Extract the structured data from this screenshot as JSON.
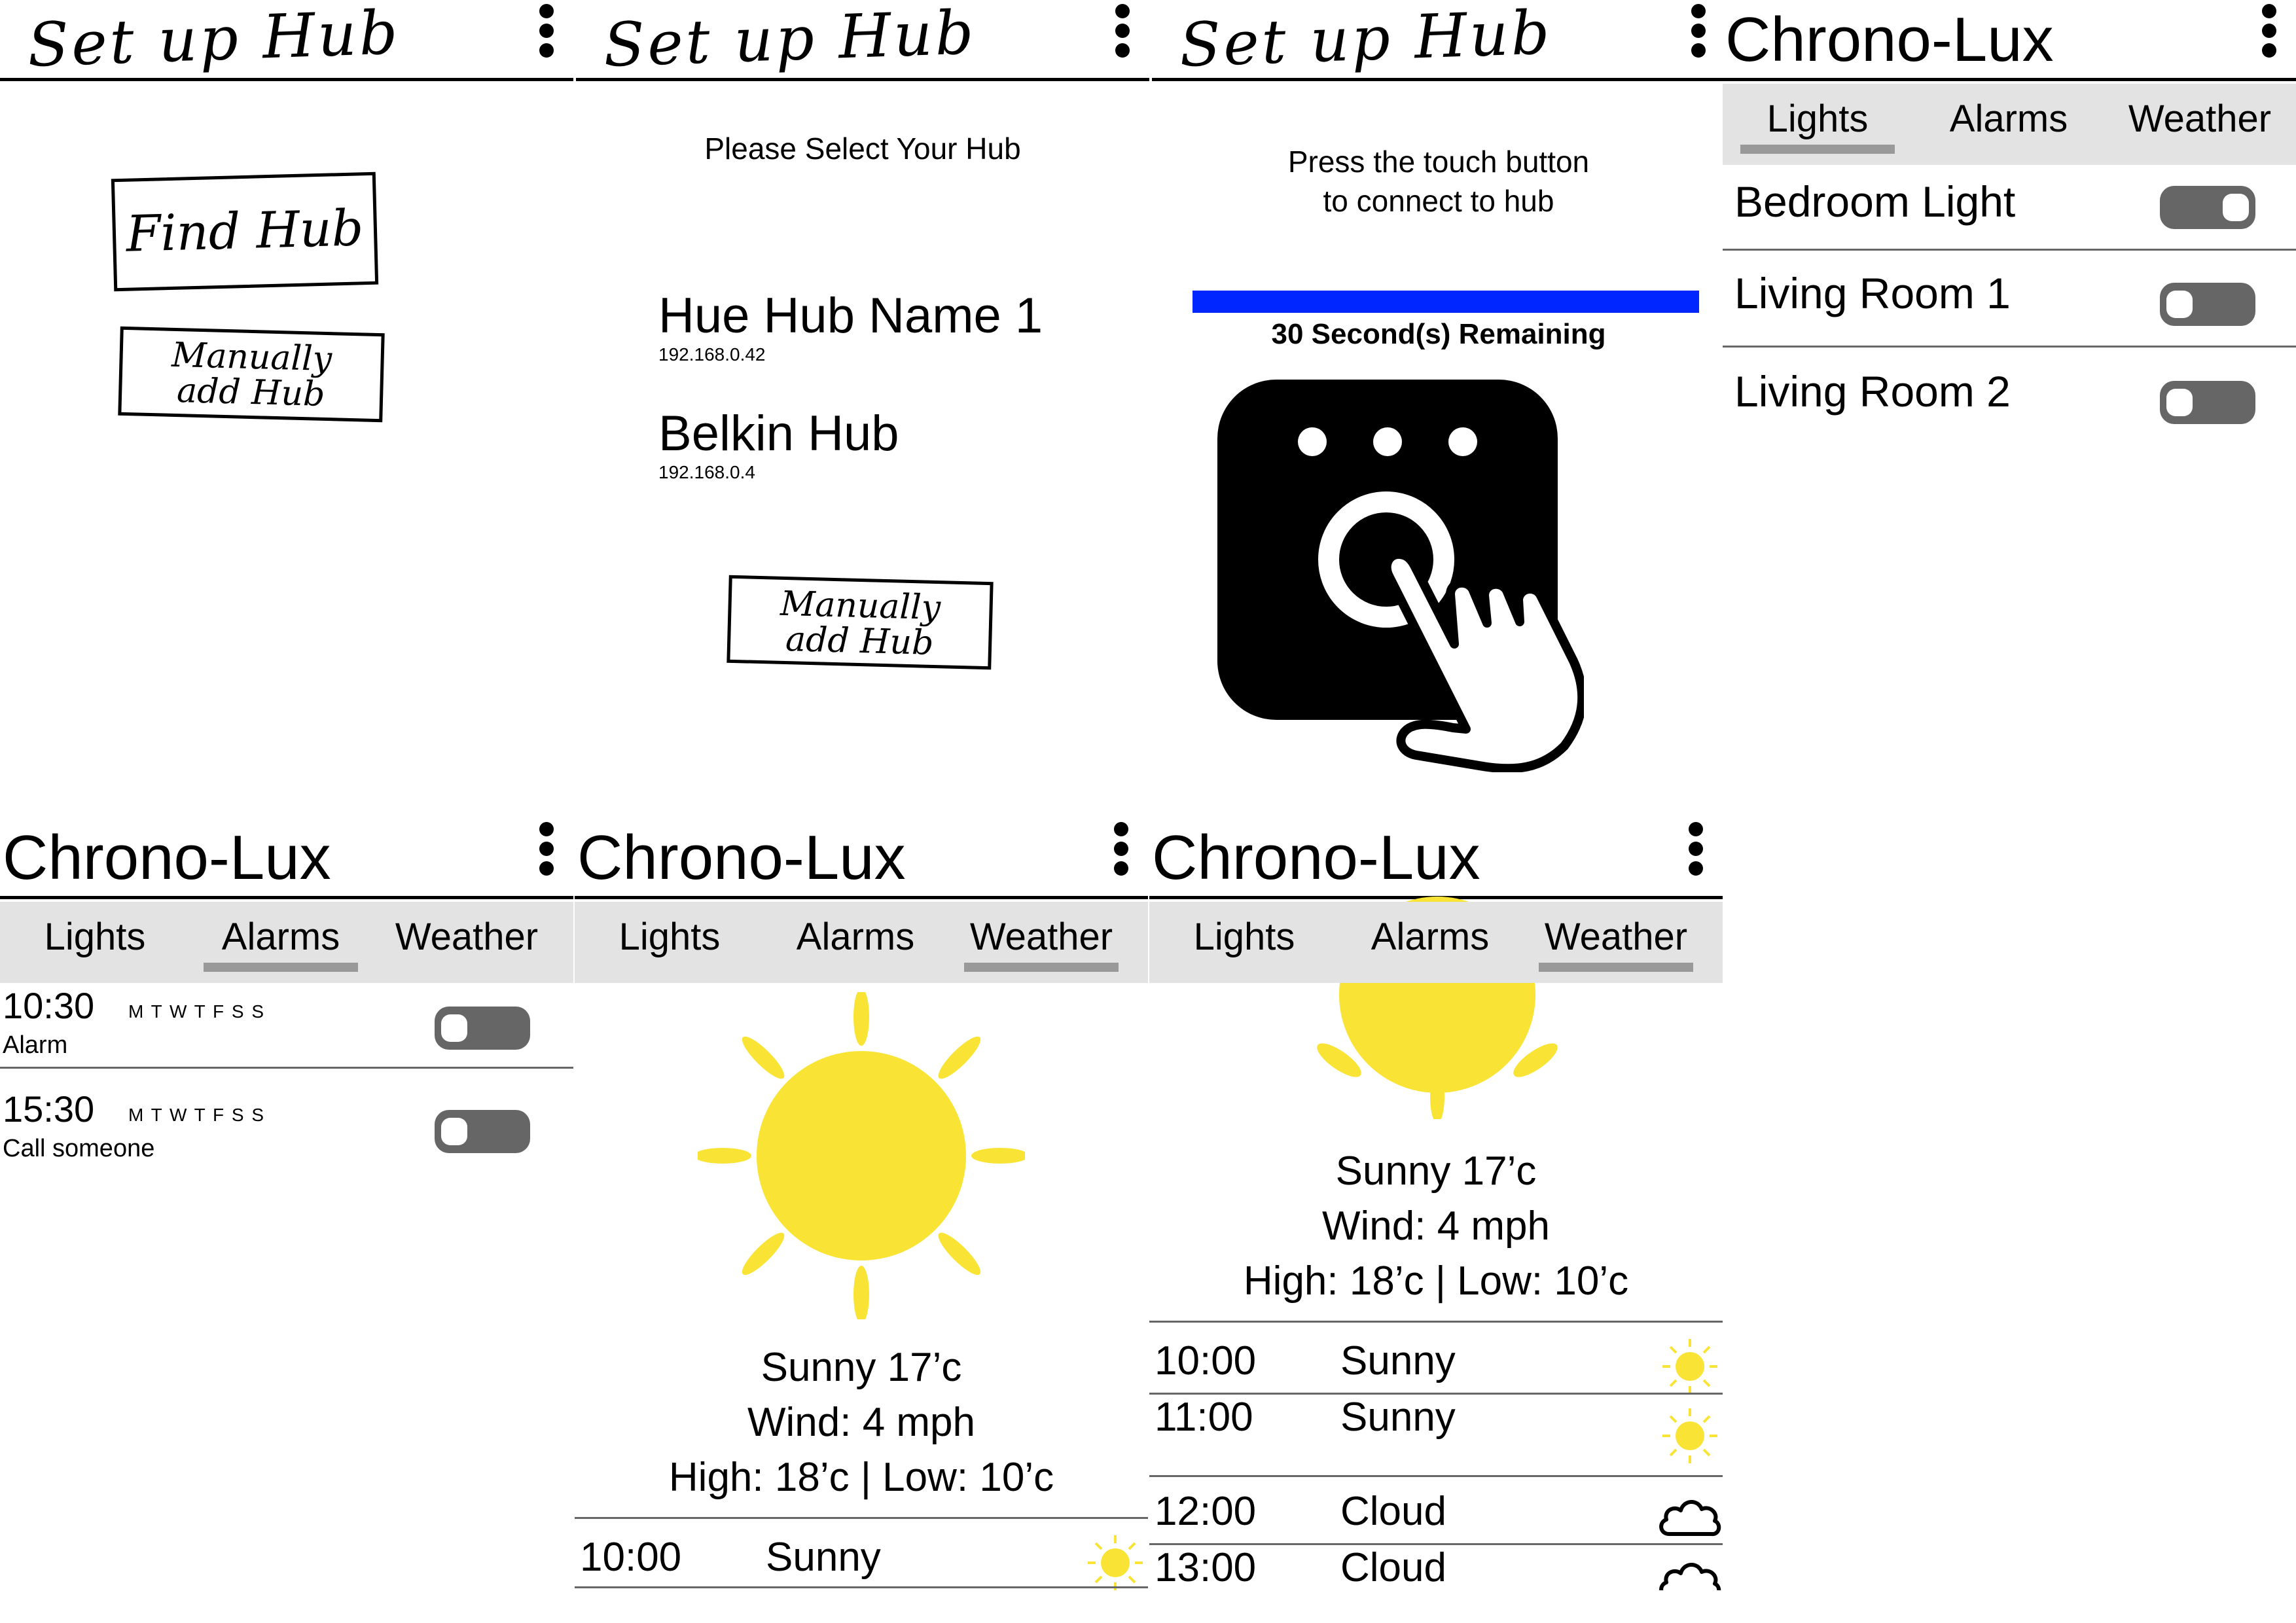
{
  "setup": {
    "title": "Set up Hub",
    "find_hub_label": "Find Hub",
    "manual_add_line1": "Manually",
    "manual_add_line2": "add Hub",
    "select_prompt": "Please Select Your Hub",
    "hubs": [
      {
        "name": "Hue Hub Name 1",
        "ip": "192.168.0.42"
      },
      {
        "name": "Belkin Hub",
        "ip": "192.168.0.4"
      }
    ],
    "press_line1": "Press the touch button",
    "press_line2": "to connect to hub",
    "countdown": "30 Second(s) Remaining",
    "progress_fraction": 1.0
  },
  "app": {
    "title": "Chrono-Lux",
    "tabs": [
      "Lights",
      "Alarms",
      "Weather"
    ]
  },
  "lights": [
    {
      "name": "Bedroom Light"
    },
    {
      "name": "Living Room 1"
    },
    {
      "name": "Living Room 2"
    }
  ],
  "alarms": [
    {
      "time": "10:30",
      "days": "M T W T F S S",
      "label": "Alarm"
    },
    {
      "time": "15:30",
      "days": "M T W T F S S",
      "label": "Call someone"
    }
  ],
  "weather": {
    "summary": "Sunny 17’c",
    "wind": "Wind: 4 mph",
    "high_low": "High: 18’c | Low: 10’c",
    "hourly": [
      {
        "time": "10:00",
        "condition": "Sunny",
        "icon": "sun-icon"
      },
      {
        "time": "11:00",
        "condition": "Sunny",
        "icon": "sun-icon"
      },
      {
        "time": "12:00",
        "condition": "Cloud",
        "icon": "cloud-icon"
      },
      {
        "time": "13:00",
        "condition": "Cloud",
        "icon": "cloud-icon"
      }
    ]
  },
  "colors": {
    "accent_blue": "#0026ff",
    "sun_yellow": "#f9e435",
    "tab_bar_grey": "#e3e3e3",
    "toggle_grey": "#666666"
  }
}
